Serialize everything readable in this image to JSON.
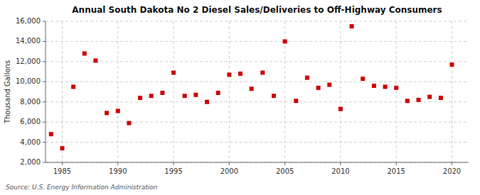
{
  "chart_data": {
    "type": "scatter",
    "title": "Annual South Dakota No 2 Diesel Sales/Deliveries to Off-Highway Consumers",
    "ylabel": "Thousand Gallons",
    "annotations": [
      "Source: U.S. Energy Information Administration"
    ],
    "x": [
      1984,
      1985,
      1986,
      1987,
      1988,
      1989,
      1990,
      1991,
      1992,
      1993,
      1994,
      1995,
      1996,
      1997,
      1998,
      1999,
      2000,
      2001,
      2002,
      2003,
      2004,
      2005,
      2006,
      2007,
      2008,
      2009,
      2010,
      2011,
      2012,
      2013,
      2014,
      2015,
      2016,
      2017,
      2018,
      2019,
      2020
    ],
    "values": [
      4800,
      3400,
      9500,
      12800,
      12100,
      6900,
      7100,
      5900,
      8400,
      8600,
      8900,
      10900,
      8600,
      8700,
      8000,
      8900,
      10700,
      10800,
      9300,
      10900,
      8600,
      14000,
      8100,
      10400,
      9400,
      9700,
      7300,
      15500,
      10300,
      9600,
      9500,
      9400,
      8100,
      8200,
      8500,
      8400,
      11700
    ],
    "color": "#cc0000",
    "marker": "square",
    "xlim": [
      1983.5,
      2021.5
    ],
    "ylim": [
      2000,
      16000
    ],
    "xticks": [
      1985,
      1990,
      1995,
      2000,
      2005,
      2010,
      2015,
      2020
    ],
    "yticks": [
      {
        "value": 2000,
        "label": "2,000"
      },
      {
        "value": 4000,
        "label": "4,000"
      },
      {
        "value": 6000,
        "label": "6,000"
      },
      {
        "value": 8000,
        "label": "8,000"
      },
      {
        "value": 10000,
        "label": "10,000"
      },
      {
        "value": 12000,
        "label": "12,000"
      },
      {
        "value": 14000,
        "label": "14,000"
      },
      {
        "value": 16000,
        "label": "16,000"
      }
    ],
    "grid": true
  }
}
